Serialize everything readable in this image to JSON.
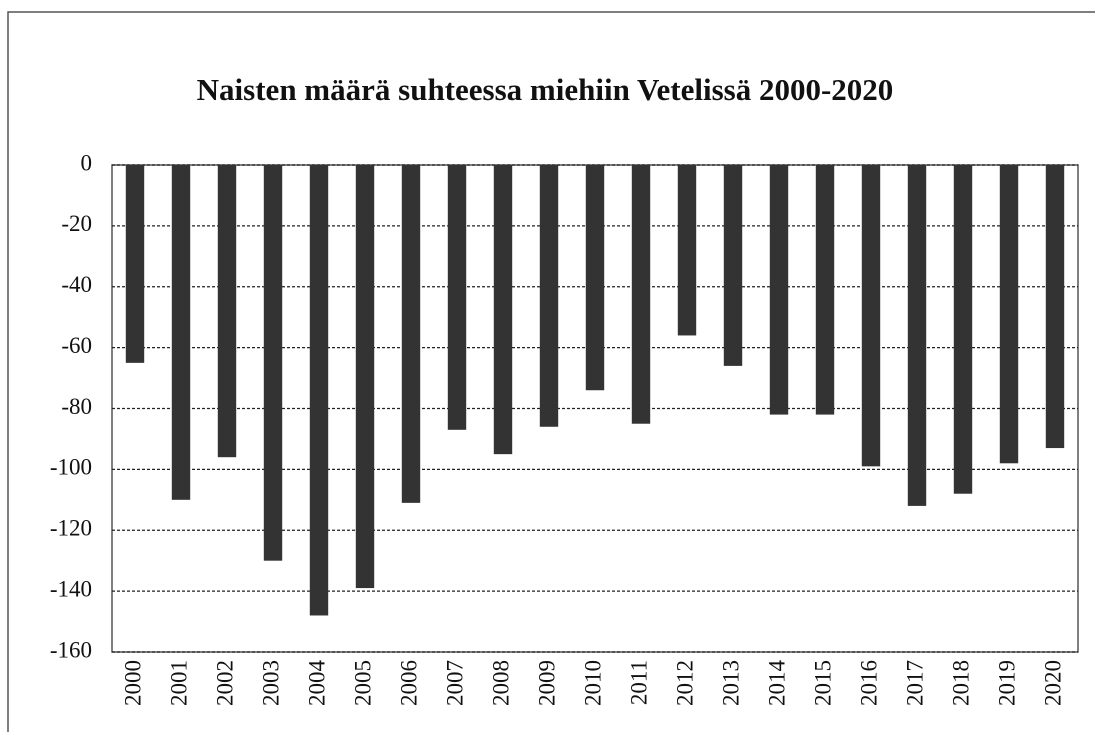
{
  "chart_data": {
    "type": "bar",
    "title": "Naisten määrä suhteessa miehiin Vetelissä 2000-2020",
    "categories": [
      "2000",
      "2001",
      "2002",
      "2003",
      "2004",
      "2005",
      "2006",
      "2007",
      "2008",
      "2009",
      "2010",
      "2011",
      "2012",
      "2013",
      "2014",
      "2015",
      "2016",
      "2017",
      "2018",
      "2019",
      "2020"
    ],
    "values": [
      -65,
      -110,
      -96,
      -130,
      -148,
      -139,
      -111,
      -87,
      -95,
      -86,
      -74,
      -85,
      -56,
      -66,
      -82,
      -82,
      -99,
      -112,
      -108,
      -98,
      -93
    ],
    "color": "#333333",
    "ylim": [
      -160,
      0
    ],
    "yticks": [
      0,
      -20,
      -40,
      -60,
      -80,
      -100,
      -120,
      -140,
      -160
    ],
    "grid": true
  }
}
